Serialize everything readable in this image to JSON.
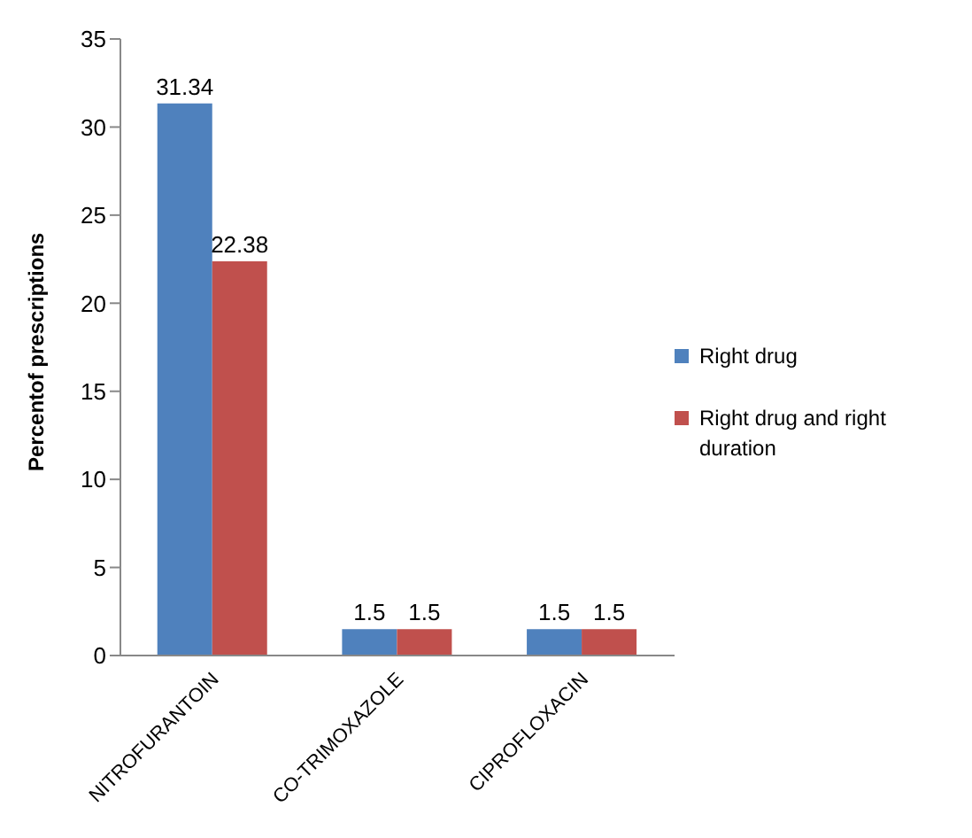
{
  "chart_data": {
    "type": "bar",
    "ylabel": "Percentof prescriptions",
    "categories": [
      "NITROFURANTOIN",
      "CO-TRIMOXAZOLE",
      "CIPROFLOXACIN"
    ],
    "series": [
      {
        "name": "Right drug",
        "color": "#4f81bd",
        "values": [
          31.34,
          1.5,
          1.5
        ]
      },
      {
        "name": "Right drug and right duration",
        "color": "#c0504d",
        "values": [
          22.38,
          1.5,
          1.5
        ]
      }
    ],
    "ylim": [
      0,
      35
    ],
    "yticks": [
      0,
      5,
      10,
      15,
      20,
      25,
      30,
      35
    ],
    "grid": false,
    "legend": "right",
    "data_labels": true
  }
}
